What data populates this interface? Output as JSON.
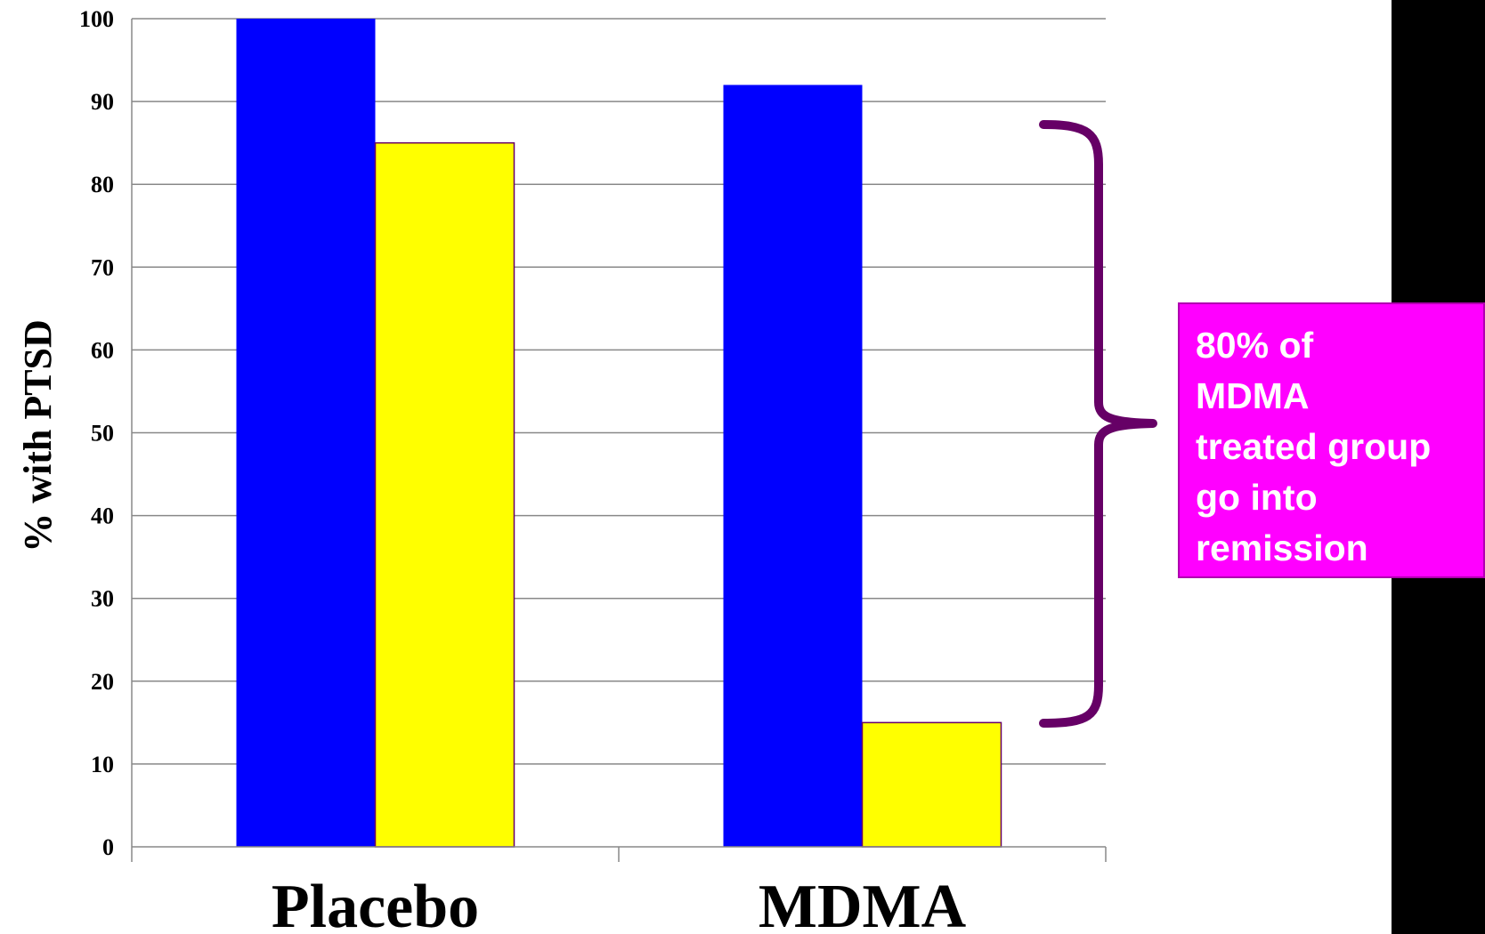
{
  "chart_data": {
    "type": "bar",
    "categories": [
      "Placebo",
      "MDMA"
    ],
    "series": [
      {
        "values": [
          100,
          92
        ],
        "color": "#0000ff"
      },
      {
        "values": [
          85,
          15
        ],
        "color": "#ffff00"
      }
    ],
    "title": "",
    "xlabel": "",
    "ylabel": "% with PTSD",
    "ylim": [
      0,
      100
    ],
    "yticks": [
      0,
      10,
      20,
      30,
      40,
      50,
      60,
      70,
      80,
      90,
      100
    ],
    "grid": true,
    "legend": "none"
  },
  "annotation": {
    "lines": [
      "80% of",
      "MDMA",
      "treated group",
      "go into",
      "remission"
    ],
    "background_color": "#ff00ff",
    "bracket_color": "#660066"
  },
  "colors": {
    "grid": "#888888",
    "bar_border": "#660066"
  }
}
